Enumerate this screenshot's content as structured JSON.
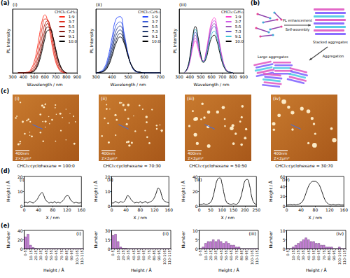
{
  "figure_labels": [
    "(a)",
    "(b)",
    "(c)",
    "(d)",
    "(e)"
  ],
  "schematic": {
    "arrow_1_top": "PL enhancement",
    "arrow_1_bottom": "Self-assembly",
    "stack_label": "Stacked aggregates",
    "arrow_2": "Aggregation",
    "large_label": "Large aggregates"
  },
  "afm_images": [
    {
      "label": "(i)",
      "scale_bar": "400nm",
      "scan_size": "2×2μm²",
      "caption": "CHCl₃:cyclohexane = 100:0"
    },
    {
      "label": "(ii)",
      "scale_bar": "400nm",
      "scan_size": "2×2μm²",
      "caption": "CHCl₃:cyclohexane = 70:30"
    },
    {
      "label": "(iii)",
      "scale_bar": "400nm",
      "scan_size": "2×2μm²",
      "caption": "CHCl₃:cyclohexane = 50:50"
    },
    {
      "label": "(iv)",
      "scale_bar": "400nm",
      "scan_size": "2×2μm²",
      "caption": "CHCl₃:cyclohexane = 30:70"
    }
  ],
  "chart_data": [
    {
      "type": "line",
      "title": "(i)",
      "x_label": "Wavelength / nm",
      "y_label": "PL Intensity",
      "x": [
        350,
        375,
        400,
        425,
        450,
        475,
        500,
        525,
        550,
        575,
        600,
        625,
        650,
        675,
        700,
        725,
        750,
        775,
        800
      ],
      "xlim": [
        300,
        900
      ],
      "xticks": [
        300,
        400,
        500,
        600,
        700,
        800,
        900
      ],
      "ylim": [
        0,
        1.1
      ],
      "tick_labels": "x",
      "grid": false,
      "legend": "upper right",
      "legend_title": "CHCl₃:C₆H₁₂",
      "series": [
        {
          "name": "1:9",
          "color": "#ff2a1a",
          "values": [
            0,
            0,
            0,
            0.01,
            0.02,
            0.08,
            0.19,
            0.39,
            0.66,
            0.9,
            1,
            0.9,
            0.66,
            0.39,
            0.19,
            0.08,
            0.02,
            0.01,
            0
          ]
        },
        {
          "name": "3:7",
          "color": "#e0301e",
          "values": [
            0,
            0,
            0,
            0,
            0.01,
            0.05,
            0.13,
            0.29,
            0.52,
            0.78,
            0.93,
            0.92,
            0.73,
            0.47,
            0.24,
            0.1,
            0.03,
            0.01,
            0
          ]
        },
        {
          "name": "5:5",
          "color": "#b81d13",
          "values": [
            0,
            0,
            0,
            0,
            0,
            0.03,
            0.08,
            0.2,
            0.4,
            0.64,
            0.84,
            0.9,
            0.78,
            0.54,
            0.31,
            0.14,
            0.05,
            0.01,
            0
          ]
        },
        {
          "name": "7:3",
          "color": "#8b1a10",
          "values": [
            0,
            0,
            0,
            0,
            0,
            0.02,
            0.05,
            0.14,
            0.3,
            0.52,
            0.73,
            0.85,
            0.8,
            0.61,
            0.38,
            0.19,
            0.08,
            0.02,
            0
          ]
        },
        {
          "name": "9:1",
          "color": "#4d0e08",
          "values": [
            0,
            0,
            0,
            0,
            0,
            0.01,
            0.04,
            0.11,
            0.25,
            0.45,
            0.66,
            0.79,
            0.77,
            0.62,
            0.4,
            0.21,
            0.09,
            0.03,
            0
          ]
        },
        {
          "name": "10:0",
          "color": "#000000",
          "values": [
            0,
            0,
            0,
            0,
            0,
            0.01,
            0.03,
            0.09,
            0.21,
            0.39,
            0.59,
            0.73,
            0.74,
            0.62,
            0.42,
            0.23,
            0.1,
            0.03,
            0
          ]
        }
      ]
    },
    {
      "type": "line",
      "title": "(ii)",
      "x_label": "Wavelength / nm",
      "y_label": "PL Intensity",
      "x": [
        300,
        325,
        350,
        375,
        400,
        425,
        450,
        475,
        500,
        525,
        550,
        575,
        600,
        625,
        650,
        675,
        700
      ],
      "xlim": [
        300,
        700
      ],
      "xticks": [
        300,
        400,
        500,
        600,
        700
      ],
      "ylim": [
        0,
        1.1
      ],
      "tick_labels": "x",
      "grid": false,
      "legend": "upper right",
      "legend_title": "CHCl₃:C₆H₁₂",
      "series": [
        {
          "name": "1:9",
          "color": "#2b4cff",
          "values": [
            0,
            0.02,
            0.08,
            0.27,
            0.61,
            0.93,
            0.97,
            0.68,
            0.32,
            0.1,
            0.02,
            0.01,
            0,
            0,
            0,
            0,
            0
          ]
        },
        {
          "name": "3:7",
          "color": "#3a5bd9",
          "values": [
            0,
            0.01,
            0.06,
            0.22,
            0.52,
            0.82,
            0.88,
            0.64,
            0.31,
            0.1,
            0.02,
            0.01,
            0,
            0,
            0,
            0,
            0
          ]
        },
        {
          "name": "5:5",
          "color": "#2c3e8c",
          "values": [
            0,
            0.01,
            0.05,
            0.19,
            0.45,
            0.73,
            0.81,
            0.6,
            0.3,
            0.1,
            0.02,
            0.01,
            0,
            0,
            0,
            0,
            0
          ]
        },
        {
          "name": "7:3",
          "color": "#223a70",
          "values": [
            0,
            0.01,
            0.04,
            0.16,
            0.39,
            0.65,
            0.74,
            0.57,
            0.29,
            0.1,
            0.03,
            0.01,
            0,
            0,
            0,
            0,
            0
          ]
        },
        {
          "name": "9:1",
          "color": "#1b2540",
          "values": [
            0,
            0.01,
            0.03,
            0.13,
            0.33,
            0.57,
            0.68,
            0.54,
            0.29,
            0.11,
            0.03,
            0.01,
            0,
            0,
            0,
            0,
            0
          ]
        },
        {
          "name": "10:0",
          "color": "#000000",
          "values": [
            0,
            0.01,
            0.03,
            0.11,
            0.29,
            0.51,
            0.62,
            0.51,
            0.28,
            0.11,
            0.03,
            0.01,
            0,
            0,
            0,
            0,
            0
          ]
        }
      ]
    },
    {
      "type": "line",
      "title": "(iii)",
      "x_label": "Wavelength / nm",
      "y_label": "PL Intensity",
      "x": [
        350,
        375,
        400,
        425,
        450,
        475,
        500,
        525,
        550,
        575,
        600,
        625,
        650,
        675,
        700,
        725,
        750,
        775,
        800
      ],
      "xlim": [
        300,
        900
      ],
      "xticks": [
        300,
        400,
        500,
        600,
        700,
        800,
        900
      ],
      "ylim": [
        0,
        1.1
      ],
      "tick_labels": "x",
      "grid": false,
      "legend": "upper right",
      "legend_title": "CHCl₃:C₆H₁₂",
      "series": [
        {
          "name": "1:9",
          "color": "#ff3fd0",
          "values": [
            0.01,
            0.06,
            0.2,
            0.42,
            0.55,
            0.42,
            0.25,
            0.21,
            0.37,
            0.64,
            0.87,
            0.95,
            0.8,
            0.52,
            0.27,
            0.1,
            0.03,
            0.01,
            0
          ]
        },
        {
          "name": "3:7",
          "color": "#d05ce8",
          "values": [
            0.01,
            0.06,
            0.22,
            0.46,
            0.6,
            0.46,
            0.27,
            0.2,
            0.35,
            0.6,
            0.83,
            0.9,
            0.76,
            0.5,
            0.25,
            0.1,
            0.03,
            0.01,
            0
          ]
        },
        {
          "name": "5:5",
          "color": "#9b59b6",
          "values": [
            0.01,
            0.07,
            0.23,
            0.5,
            0.65,
            0.5,
            0.28,
            0.2,
            0.33,
            0.57,
            0.78,
            0.85,
            0.71,
            0.47,
            0.24,
            0.09,
            0.03,
            0.01,
            0
          ]
        },
        {
          "name": "7:3",
          "color": "#6a5acd",
          "values": [
            0.01,
            0.07,
            0.25,
            0.54,
            0.7,
            0.54,
            0.3,
            0.2,
            0.31,
            0.54,
            0.74,
            0.8,
            0.67,
            0.44,
            0.22,
            0.09,
            0.02,
            0.01,
            0
          ]
        },
        {
          "name": "9:1",
          "color": "#40c4d8",
          "values": [
            0.01,
            0.08,
            0.27,
            0.58,
            0.75,
            0.58,
            0.31,
            0.19,
            0.28,
            0.48,
            0.66,
            0.72,
            0.6,
            0.4,
            0.2,
            0.08,
            0.02,
            0.01,
            0
          ]
        },
        {
          "name": "10:0",
          "color": "#000000",
          "values": [
            0.01,
            0.08,
            0.29,
            0.62,
            0.8,
            0.62,
            0.32,
            0.18,
            0.25,
            0.44,
            0.6,
            0.65,
            0.55,
            0.36,
            0.18,
            0.07,
            0.02,
            0.01,
            0
          ]
        }
      ]
    },
    {
      "type": "line",
      "title": "(i)",
      "x_label": "X / nm",
      "y_label": "Height / Å",
      "x": [
        0,
        5,
        10,
        15,
        20,
        25,
        30,
        35,
        40,
        45,
        50,
        55,
        60,
        65,
        70,
        75,
        80,
        85,
        90,
        95,
        100,
        105,
        110,
        115,
        120,
        125,
        130,
        135,
        140,
        145,
        150,
        155,
        160
      ],
      "xlim": [
        0,
        160
      ],
      "xticks": [
        0,
        40,
        80,
        120,
        160
      ],
      "ylim": [
        0,
        20
      ],
      "yticks": [
        0,
        10,
        20
      ],
      "grid": false,
      "color": "#000000",
      "values": [
        2,
        2.5,
        2,
        3,
        2.5,
        2,
        3,
        4,
        6,
        8,
        9,
        7,
        4,
        3,
        2,
        2.5,
        2,
        3,
        2,
        2.5,
        2,
        3,
        4,
        6,
        7,
        6.5,
        4,
        3,
        2,
        2.5,
        2,
        2,
        2.5
      ]
    },
    {
      "type": "line",
      "title": "(ii)",
      "x_label": "X / nm",
      "y_label": "Height / Å",
      "x": [
        0,
        5,
        10,
        15,
        20,
        25,
        30,
        35,
        40,
        45,
        50,
        55,
        60,
        65,
        70,
        75,
        80,
        85,
        90,
        95,
        100,
        105,
        110,
        115,
        120,
        125,
        130,
        135,
        140,
        145,
        150,
        155,
        160
      ],
      "xlim": [
        0,
        160
      ],
      "xticks": [
        0,
        40,
        80,
        120,
        160
      ],
      "ylim": [
        0,
        20
      ],
      "yticks": [
        0,
        10,
        20
      ],
      "grid": false,
      "color": "#000000",
      "values": [
        2,
        2,
        3,
        2.5,
        2,
        3,
        2.5,
        3,
        5,
        7,
        6,
        4,
        3,
        2,
        2.5,
        2,
        3,
        2,
        2.5,
        3,
        2,
        2.5,
        3,
        4,
        6,
        9,
        12,
        11,
        7,
        4,
        3,
        2.5,
        2
      ]
    },
    {
      "type": "line",
      "title": "(iii)",
      "x_label": "X / nm",
      "y_label": "Height / Å",
      "x": [
        0,
        10,
        20,
        30,
        40,
        50,
        60,
        70,
        80,
        90,
        100,
        110,
        120,
        130,
        140,
        150,
        160,
        170,
        180,
        190,
        200,
        210,
        220,
        230,
        240,
        250
      ],
      "xlim": [
        0,
        250
      ],
      "xticks": [
        0,
        50,
        100,
        150,
        200,
        250
      ],
      "ylim": [
        0,
        40
      ],
      "yticks": [
        0,
        20,
        40
      ],
      "grid": false,
      "color": "#000000",
      "values": [
        2,
        2,
        3,
        2,
        3,
        5,
        12,
        25,
        36,
        38,
        30,
        15,
        5,
        3,
        2,
        3,
        2,
        4,
        10,
        22,
        34,
        36,
        28,
        12,
        4,
        2
      ]
    },
    {
      "type": "line",
      "title": "(iv)",
      "x_label": "X / nm",
      "y_label": "Height / Å",
      "x": [
        0,
        5,
        10,
        15,
        20,
        25,
        30,
        35,
        40,
        45,
        50,
        55,
        60,
        65,
        70,
        75,
        80,
        85,
        90,
        95,
        100,
        105,
        110,
        115,
        120,
        125,
        130,
        135,
        140,
        145,
        150,
        155,
        160
      ],
      "xlim": [
        0,
        160
      ],
      "xticks": [
        0,
        40,
        80,
        120,
        160
      ],
      "ylim": [
        0,
        60
      ],
      "yticks": [
        0,
        20,
        40,
        60
      ],
      "grid": false,
      "color": "#000000",
      "values": [
        2,
        2,
        3,
        2,
        3,
        2,
        3,
        4,
        6,
        10,
        18,
        28,
        38,
        45,
        49,
        50,
        50,
        48,
        44,
        36,
        26,
        16,
        9,
        5,
        3,
        2,
        3,
        2,
        2,
        3,
        2,
        2,
        2
      ]
    },
    {
      "type": "bar",
      "title": "(i)",
      "x_label": "Height / Å",
      "y_label": "Number",
      "categories": [
        "0-5",
        null,
        "10-15",
        null,
        "20-25",
        null,
        "30-35",
        null,
        "40-45",
        null,
        "50-55",
        null,
        "60-65",
        null,
        "70-75",
        null,
        "80-85",
        null,
        "90-95",
        null,
        "100-105",
        null,
        "110-115"
      ],
      "values": [
        26,
        32,
        8,
        3,
        1,
        0,
        0,
        0,
        0,
        0,
        0,
        0,
        0,
        0,
        0,
        0,
        0,
        0,
        0,
        0,
        0,
        0,
        0
      ],
      "color": "#c77fd8",
      "ylim": [
        0,
        40
      ],
      "yticks": [
        0,
        20,
        40
      ],
      "grid": false
    },
    {
      "type": "bar",
      "title": "(ii)",
      "x_label": "Height / Å",
      "y_label": "Number",
      "categories": [
        "0-5",
        null,
        "10-15",
        null,
        "20-25",
        null,
        "30-35",
        null,
        "40-45",
        null,
        "50-55",
        null,
        "60-65",
        null,
        "70-75",
        null,
        "80-85",
        null,
        "90-95",
        null,
        "100-105",
        null,
        "110-115"
      ],
      "values": [
        22,
        24,
        12,
        3,
        1,
        1,
        0,
        0,
        0,
        0,
        0,
        0,
        0,
        0,
        0,
        0,
        0,
        0,
        0,
        0,
        0,
        0,
        0
      ],
      "color": "#c77fd8",
      "ylim": [
        0,
        30
      ],
      "yticks": [
        0,
        15,
        30
      ],
      "grid": false
    },
    {
      "type": "bar",
      "title": "(iii)",
      "x_label": "Height / Å",
      "y_label": "Number",
      "categories": [
        "0-5",
        null,
        "10-15",
        null,
        "20-25",
        null,
        "30-35",
        null,
        "40-45",
        null,
        "50-55",
        null,
        "60-65",
        null,
        "70-75",
        null,
        "80-85",
        null,
        "90-95",
        null,
        "100-105",
        null,
        "110-115"
      ],
      "values": [
        0,
        1,
        3,
        4,
        4,
        5,
        4,
        5,
        4,
        3,
        4,
        3,
        2,
        2,
        1,
        1,
        0,
        0,
        0,
        0,
        0,
        0,
        0
      ],
      "color": "#c77fd8",
      "ylim": [
        0,
        10
      ],
      "yticks": [
        0,
        5,
        10
      ],
      "grid": false
    },
    {
      "type": "bar",
      "title": "(iv)",
      "x_label": "Height / Å",
      "y_label": "Number",
      "categories": [
        "0-5",
        null,
        "10-15",
        null,
        "20-25",
        null,
        "30-35",
        null,
        "40-45",
        null,
        "50-55",
        null,
        "60-65",
        null,
        "70-75",
        null,
        "80-85",
        null,
        "90-95",
        null,
        "100-105",
        null,
        "110-115"
      ],
      "values": [
        0,
        0,
        1,
        2,
        3,
        4,
        5,
        6,
        5,
        4,
        4,
        3,
        3,
        2,
        2,
        1,
        1,
        1,
        0,
        0,
        1,
        0,
        0
      ],
      "color": "#c77fd8",
      "ylim": [
        0,
        10
      ],
      "yticks": [
        0,
        5,
        10
      ],
      "grid": false
    }
  ]
}
